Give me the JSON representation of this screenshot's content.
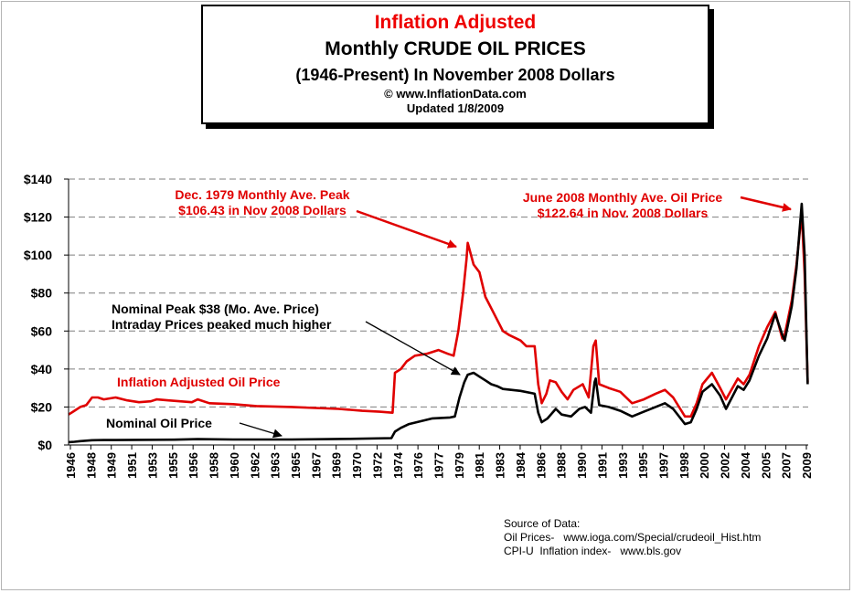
{
  "title_box": {
    "line1": "Inflation Adjusted",
    "line2": "Monthly CRUDE OIL PRICES",
    "line3": "(1946-Present) In November 2008 Dollars",
    "line4": "© www.InflationData.com",
    "line5": "Updated 1/8/2009"
  },
  "colors": {
    "adjusted": "#e00000",
    "nominal": "#000000",
    "grid": "#7f7f7f",
    "title_red": "#ee0000"
  },
  "annotations": {
    "peak1979_l1": "Dec. 1979 Monthly Ave. Peak",
    "peak1979_l2": "$106.43 in Nov 2008 Dollars",
    "peak2008_l1": "June 2008 Monthly Ave. Oil  Price",
    "peak2008_l2": "$122.64 in Nov. 2008 Dollars",
    "nominal_peak_l1": "Nominal Peak $38 (Mo. Ave. Price)",
    "nominal_peak_l2": "Intraday Prices peaked much higher",
    "adjusted_label": "Inflation Adjusted Oil Price",
    "nominal_label": "Nominal Oil Price"
  },
  "source": {
    "heading": "Source of Data:",
    "line1": "Oil Prices-   www.ioga.com/Special/crudeoil_Hist.htm",
    "line2": "CPI-U  Inflation index-   www.bls.gov"
  },
  "chart_data": {
    "type": "line",
    "title": "Inflation Adjusted Monthly CRUDE OIL PRICES",
    "xlabel": "",
    "ylabel": "",
    "ylim": [
      0,
      140
    ],
    "xlim": [
      1946,
      2009
    ],
    "y_ticks": [
      0,
      20,
      40,
      60,
      80,
      100,
      120,
      140
    ],
    "y_tick_labels": [
      "$0",
      "$20",
      "$40",
      "$60",
      "$80",
      "$100",
      "$120",
      "$140"
    ],
    "x_tick_labels": [
      "1946",
      "1948",
      "1949",
      "1951",
      "1953",
      "1955",
      "1956",
      "1958",
      "1960",
      "1962",
      "1963",
      "1965",
      "1967",
      "1969",
      "1970",
      "1972",
      "1974",
      "1976",
      "1977",
      "1979",
      "1981",
      "1983",
      "1984",
      "1986",
      "1988",
      "1990",
      "1991",
      "1993",
      "1995",
      "1997",
      "1998",
      "2000",
      "2002",
      "2004",
      "2005",
      "2007",
      "2009"
    ],
    "grid": "horizontal-dashed",
    "series": [
      {
        "name": "Inflation Adjusted Oil Price",
        "color": "#e00000",
        "points": [
          [
            1946.0,
            16
          ],
          [
            1946.5,
            18
          ],
          [
            1947.0,
            20
          ],
          [
            1947.5,
            21
          ],
          [
            1948.0,
            25
          ],
          [
            1948.5,
            25
          ],
          [
            1949.0,
            24
          ],
          [
            1950.0,
            25
          ],
          [
            1951.0,
            23.5
          ],
          [
            1952.0,
            22.5
          ],
          [
            1953.0,
            23
          ],
          [
            1953.5,
            24
          ],
          [
            1954.5,
            23.5
          ],
          [
            1955.5,
            23
          ],
          [
            1956.5,
            22.5
          ],
          [
            1957.0,
            24
          ],
          [
            1958.0,
            22
          ],
          [
            1960.0,
            21.5
          ],
          [
            1962.0,
            20.5
          ],
          [
            1965.0,
            20
          ],
          [
            1967.0,
            19.5
          ],
          [
            1969.0,
            19
          ],
          [
            1970.0,
            18.5
          ],
          [
            1971.0,
            18
          ],
          [
            1972.5,
            17.5
          ],
          [
            1973.6,
            17
          ],
          [
            1973.8,
            38
          ],
          [
            1974.3,
            40
          ],
          [
            1974.8,
            44
          ],
          [
            1975.5,
            47
          ],
          [
            1976.5,
            48
          ],
          [
            1977.5,
            50
          ],
          [
            1978.3,
            48
          ],
          [
            1978.8,
            47
          ],
          [
            1979.2,
            60
          ],
          [
            1979.6,
            80
          ],
          [
            1979.9,
            98
          ],
          [
            1980.0,
            106.4
          ],
          [
            1980.5,
            95
          ],
          [
            1981.0,
            91
          ],
          [
            1981.5,
            78
          ],
          [
            1982.0,
            72
          ],
          [
            1982.5,
            66
          ],
          [
            1983.0,
            60
          ],
          [
            1983.5,
            58
          ],
          [
            1984.5,
            55
          ],
          [
            1985.0,
            52
          ],
          [
            1985.7,
            52
          ],
          [
            1986.0,
            32
          ],
          [
            1986.3,
            22
          ],
          [
            1986.7,
            27
          ],
          [
            1987.0,
            34
          ],
          [
            1987.5,
            33
          ],
          [
            1988.0,
            28
          ],
          [
            1988.5,
            24
          ],
          [
            1989.0,
            29
          ],
          [
            1989.8,
            32
          ],
          [
            1990.3,
            25
          ],
          [
            1990.7,
            52
          ],
          [
            1990.9,
            55
          ],
          [
            1991.2,
            32
          ],
          [
            1992.0,
            30
          ],
          [
            1993.0,
            28
          ],
          [
            1994.0,
            22
          ],
          [
            1995.0,
            24
          ],
          [
            1996.0,
            27
          ],
          [
            1996.8,
            29
          ],
          [
            1997.5,
            25
          ],
          [
            1998.5,
            15
          ],
          [
            1999.0,
            15
          ],
          [
            1999.5,
            22
          ],
          [
            2000.0,
            32
          ],
          [
            2000.8,
            38
          ],
          [
            2001.5,
            30
          ],
          [
            2002.0,
            24
          ],
          [
            2003.0,
            35
          ],
          [
            2003.5,
            32
          ],
          [
            2004.0,
            37
          ],
          [
            2004.8,
            52
          ],
          [
            2005.5,
            62
          ],
          [
            2006.2,
            70
          ],
          [
            2006.8,
            56
          ],
          [
            2007.0,
            58
          ],
          [
            2007.6,
            76
          ],
          [
            2008.0,
            95
          ],
          [
            2008.45,
            122.6
          ],
          [
            2008.7,
            90
          ],
          [
            2008.95,
            33
          ]
        ]
      },
      {
        "name": "Nominal Oil Price",
        "color": "#000000",
        "points": [
          [
            1946.0,
            1.5
          ],
          [
            1946.5,
            1.7
          ],
          [
            1947.0,
            2
          ],
          [
            1948.0,
            2.5
          ],
          [
            1949.0,
            2.6
          ],
          [
            1955.0,
            2.8
          ],
          [
            1957.0,
            3.1
          ],
          [
            1960.0,
            2.9
          ],
          [
            1965.0,
            2.9
          ],
          [
            1970.0,
            3.2
          ],
          [
            1973.5,
            3.6
          ],
          [
            1973.8,
            7
          ],
          [
            1974.3,
            9
          ],
          [
            1975.0,
            11
          ],
          [
            1976.0,
            12.5
          ],
          [
            1977.0,
            14
          ],
          [
            1978.5,
            14.5
          ],
          [
            1978.9,
            15
          ],
          [
            1979.3,
            25
          ],
          [
            1979.7,
            33
          ],
          [
            1980.0,
            37
          ],
          [
            1980.5,
            38
          ],
          [
            1981.0,
            36
          ],
          [
            1981.5,
            34
          ],
          [
            1982.0,
            32
          ],
          [
            1982.5,
            31
          ],
          [
            1983.0,
            29.5
          ],
          [
            1984.5,
            28.5
          ],
          [
            1985.7,
            27
          ],
          [
            1986.0,
            17
          ],
          [
            1986.3,
            12
          ],
          [
            1986.8,
            14
          ],
          [
            1987.5,
            19
          ],
          [
            1988.0,
            16
          ],
          [
            1988.8,
            15
          ],
          [
            1989.5,
            19
          ],
          [
            1990.0,
            20
          ],
          [
            1990.5,
            17
          ],
          [
            1990.8,
            33
          ],
          [
            1990.9,
            35
          ],
          [
            1991.2,
            21
          ],
          [
            1992.0,
            20
          ],
          [
            1993.0,
            18
          ],
          [
            1994.0,
            15
          ],
          [
            1995.0,
            17.5
          ],
          [
            1996.0,
            20
          ],
          [
            1996.8,
            22
          ],
          [
            1997.5,
            19
          ],
          [
            1998.5,
            11
          ],
          [
            1999.0,
            12
          ],
          [
            1999.5,
            19
          ],
          [
            2000.0,
            28
          ],
          [
            2000.8,
            32
          ],
          [
            2001.5,
            26
          ],
          [
            2002.0,
            19
          ],
          [
            2003.0,
            31
          ],
          [
            2003.5,
            29
          ],
          [
            2004.0,
            34
          ],
          [
            2004.8,
            47
          ],
          [
            2005.5,
            56
          ],
          [
            2006.2,
            69
          ],
          [
            2006.8,
            58
          ],
          [
            2007.0,
            55
          ],
          [
            2007.6,
            73
          ],
          [
            2008.0,
            93
          ],
          [
            2008.45,
            127
          ],
          [
            2008.7,
            100
          ],
          [
            2008.95,
            32
          ]
        ]
      }
    ]
  }
}
